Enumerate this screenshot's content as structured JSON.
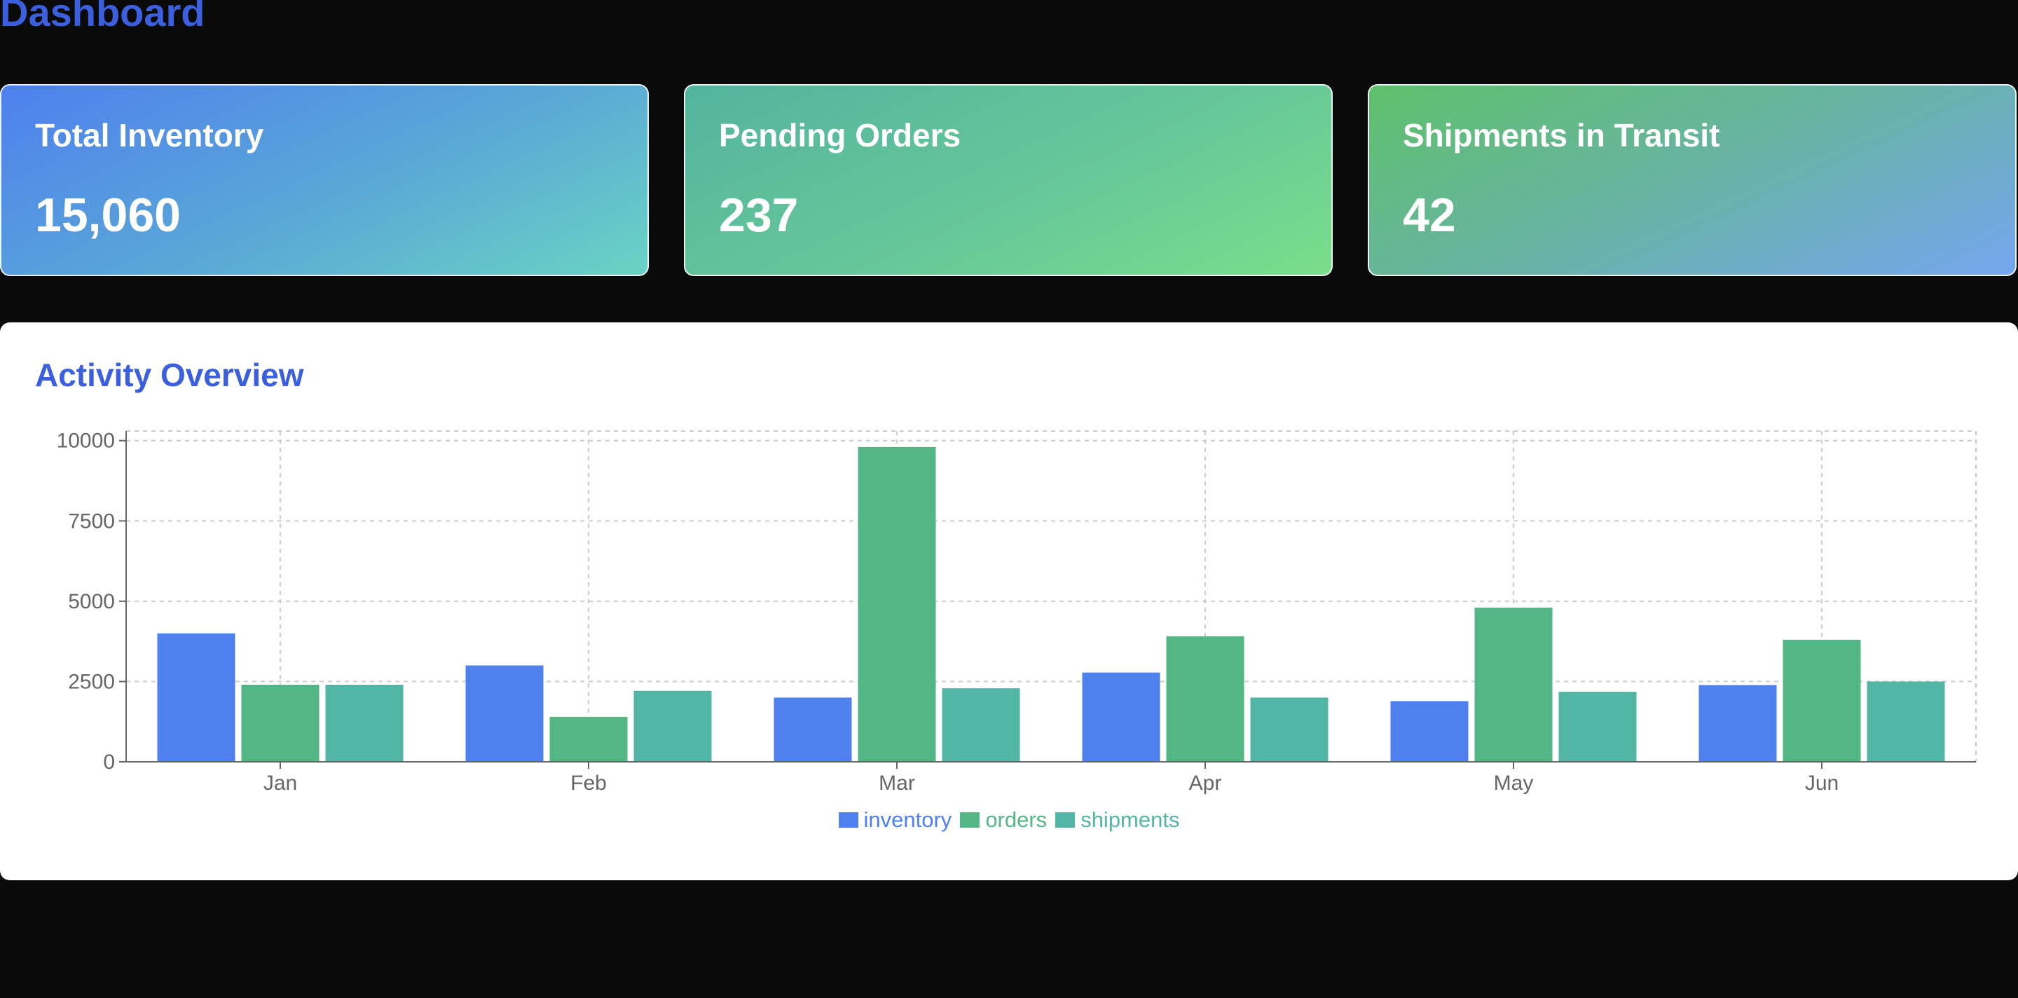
{
  "page": {
    "title": "Dashboard"
  },
  "cards": [
    {
      "label": "Total Inventory",
      "value": "15,060"
    },
    {
      "label": "Pending Orders",
      "value": "237"
    },
    {
      "label": "Shipments in Transit",
      "value": "42"
    }
  ],
  "panel": {
    "title": "Activity Overview"
  },
  "colors": {
    "accent": "#3b5fdd",
    "inventory": "#4f81ee",
    "orders": "#52b685",
    "shipments": "#53b5a6",
    "background": "#0a0a0a"
  },
  "chart_data": {
    "type": "bar",
    "categories": [
      "Jan",
      "Feb",
      "Mar",
      "Apr",
      "May",
      "Jun"
    ],
    "series": [
      {
        "name": "inventory",
        "values": [
          4000,
          3000,
          2000,
          2780,
          1890,
          2390
        ]
      },
      {
        "name": "orders",
        "values": [
          2400,
          1398,
          9800,
          3908,
          4800,
          3800
        ]
      },
      {
        "name": "shipments",
        "values": [
          2400,
          2210,
          2290,
          2000,
          2181,
          2500
        ]
      }
    ],
    "yticks": [
      0,
      2500,
      5000,
      7500,
      10000
    ],
    "ylim": [
      0,
      10000
    ],
    "grid": true,
    "legend_position": "bottom"
  }
}
